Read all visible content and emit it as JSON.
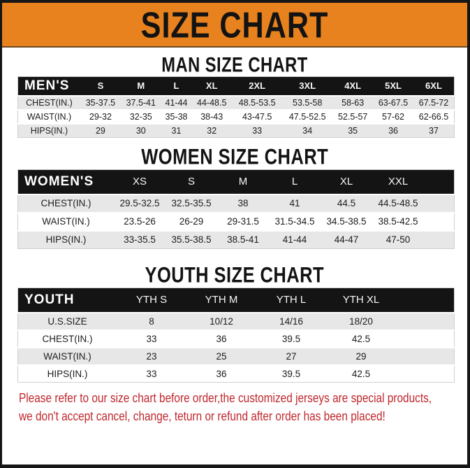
{
  "banner": {
    "title": "SIZE CHART"
  },
  "men": {
    "heading": "MAN SIZE CHART",
    "corner": "MEN'S",
    "columns": [
      "S",
      "M",
      "L",
      "XL",
      "2XL",
      "3XL",
      "4XL",
      "5XL",
      "6XL"
    ],
    "rows": [
      {
        "label": "CHEST(IN.)",
        "values": [
          "35-37.5",
          "37.5-41",
          "41-44",
          "44-48.5",
          "48.5-53.5",
          "53.5-58",
          "58-63",
          "63-67.5",
          "67.5-72"
        ]
      },
      {
        "label": "WAIST(IN.)",
        "values": [
          "29-32",
          "32-35",
          "35-38",
          "38-43",
          "43-47.5",
          "47.5-52.5",
          "52.5-57",
          "57-62",
          "62-66.5"
        ]
      },
      {
        "label": "HIPS(IN.)",
        "values": [
          "29",
          "30",
          "31",
          "32",
          "33",
          "34",
          "35",
          "36",
          "37"
        ]
      }
    ]
  },
  "women": {
    "heading": "WOMEN SIZE CHART",
    "corner": "WOMEN'S",
    "columns": [
      "XS",
      "S",
      "M",
      "L",
      "XL",
      "XXL"
    ],
    "rows": [
      {
        "label": "CHEST(IN.)",
        "values": [
          "29.5-32.5",
          "32.5-35.5",
          "38",
          "41",
          "44.5",
          "44.5-48.5"
        ]
      },
      {
        "label": "WAIST(IN.)",
        "values": [
          "23.5-26",
          "26-29",
          "29-31.5",
          "31.5-34.5",
          "34.5-38.5",
          "38.5-42.5"
        ]
      },
      {
        "label": "HIPS(IN.)",
        "values": [
          "33-35.5",
          "35.5-38.5",
          "38.5-41",
          "41-44",
          "44-47",
          "47-50"
        ]
      }
    ]
  },
  "youth": {
    "heading": "YOUTH SIZE CHART",
    "corner": "YOUTH",
    "columns": [
      "YTH S",
      "YTH M",
      "YTH L",
      "YTH XL"
    ],
    "rows": [
      {
        "label": "U.S.SIZE",
        "values": [
          "8",
          "10/12",
          "14/16",
          "18/20"
        ]
      },
      {
        "label": "CHEST(IN.)",
        "values": [
          "33",
          "36",
          "39.5",
          "42.5"
        ]
      },
      {
        "label": "WAIST(IN.)",
        "values": [
          "23",
          "25",
          "27",
          "29"
        ]
      },
      {
        "label": "HIPS(IN.)",
        "values": [
          "33",
          "36",
          "39.5",
          "42.5"
        ]
      }
    ]
  },
  "footer": {
    "line1": "Please refer to our size chart before order,the customized jerseys are special products,",
    "line2": "we don't accept cancel, change, teturn or refund after order has been placed!"
  },
  "colors": {
    "banner_bg": "#E8821E",
    "table_header_bg": "#141414",
    "row_alt_bg": "#E7E7E7",
    "notice_red": "#C1272D",
    "frame_border": "#161616"
  }
}
